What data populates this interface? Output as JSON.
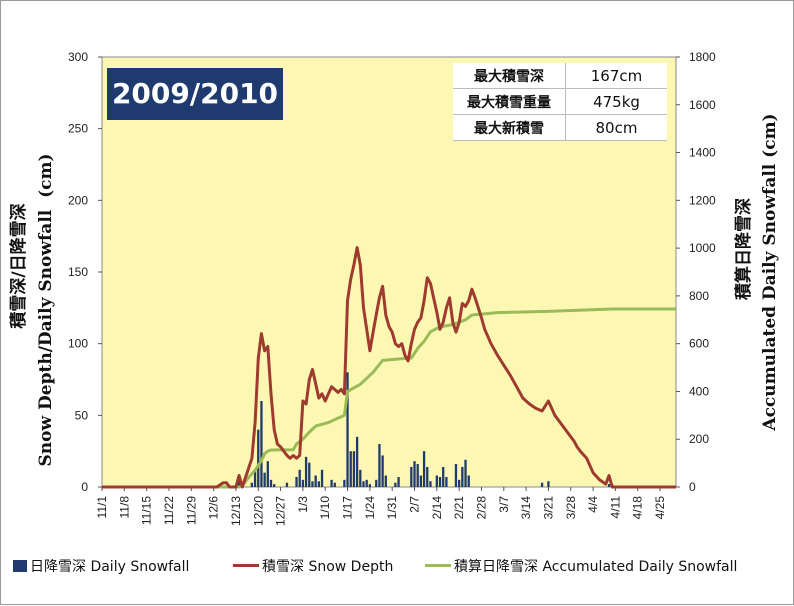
{
  "chart_data": {
    "type": "bar",
    "season_label": "2009/2010",
    "left_axis_title": "積雪深/日降雪深 Snow Depth/Daily Snowfall (cm)",
    "left_axis_title_jp": "積雪深/日降雪深",
    "left_axis_title_en": "Snow Depth/Daily Snowfall  (cm)",
    "right_axis_title_jp": "積算日降雪深",
    "right_axis_title_en": "Accumulated Daily Snowfall (cm)",
    "y_left_lim": [
      0,
      300
    ],
    "y_left_ticks": [
      "0",
      "50",
      "100",
      "150",
      "200",
      "250",
      "300"
    ],
    "y_right_lim": [
      0,
      1800
    ],
    "y_right_ticks": [
      "0",
      "200",
      "400",
      "600",
      "800",
      "1000",
      "1200",
      "1400",
      "1600",
      "1800"
    ],
    "x_days": 180,
    "x_tick_labels": [
      "11/1",
      "11/8",
      "11/15",
      "11/22",
      "11/29",
      "12/6",
      "12/13",
      "12/20",
      "12/27",
      "1/3",
      "1/10",
      "1/17",
      "1/24",
      "1/31",
      "2/7",
      "2/14",
      "2/21",
      "2/28",
      "3/7",
      "3/14",
      "3/21",
      "3/28",
      "4/4",
      "4/11",
      "4/18",
      "4/25"
    ],
    "stats": [
      {
        "label": "最大積雪深",
        "value": "167cm"
      },
      {
        "label": "最大積雪重量",
        "value": "475kg"
      },
      {
        "label": "最大新積雪",
        "value": "80cm"
      }
    ],
    "colors": {
      "plot_bg": "#fcf8b4",
      "bars": "#1f3a6e",
      "snow_depth": "#9e3b2e",
      "accumulated": "#9bbb59",
      "label_bg": "#1f3a6e"
    },
    "series": [
      {
        "name": "日降雪深 Daily Snowfall",
        "type": "bar",
        "axis": "left",
        "points": [
          [
            43,
            8
          ],
          [
            47,
            3
          ],
          [
            48,
            12
          ],
          [
            49,
            40
          ],
          [
            50,
            60
          ],
          [
            51,
            10
          ],
          [
            52,
            18
          ],
          [
            53,
            5
          ],
          [
            54,
            2
          ],
          [
            58,
            3
          ],
          [
            61,
            7
          ],
          [
            62,
            12
          ],
          [
            63,
            5
          ],
          [
            64,
            21
          ],
          [
            65,
            17
          ],
          [
            66,
            4
          ],
          [
            67,
            8
          ],
          [
            68,
            4
          ],
          [
            69,
            12
          ],
          [
            72,
            5
          ],
          [
            73,
            3
          ],
          [
            76,
            5
          ],
          [
            77,
            80
          ],
          [
            78,
            25
          ],
          [
            79,
            25
          ],
          [
            80,
            35
          ],
          [
            81,
            12
          ],
          [
            82,
            4
          ],
          [
            83,
            5
          ],
          [
            84,
            2
          ],
          [
            86,
            5
          ],
          [
            87,
            30
          ],
          [
            88,
            22
          ],
          [
            89,
            8
          ],
          [
            92,
            3
          ],
          [
            93,
            7
          ],
          [
            97,
            14
          ],
          [
            98,
            18
          ],
          [
            99,
            16
          ],
          [
            100,
            8
          ],
          [
            101,
            25
          ],
          [
            102,
            14
          ],
          [
            103,
            4
          ],
          [
            105,
            8
          ],
          [
            106,
            7
          ],
          [
            107,
            14
          ],
          [
            108,
            7
          ],
          [
            111,
            16
          ],
          [
            112,
            5
          ],
          [
            113,
            14
          ],
          [
            114,
            19
          ],
          [
            115,
            8
          ],
          [
            138,
            3
          ],
          [
            140,
            4
          ],
          [
            159,
            2
          ],
          [
            160,
            2
          ]
        ]
      },
      {
        "name": "積雪深 Snow Depth",
        "type": "line",
        "axis": "left",
        "points": [
          [
            0,
            0
          ],
          [
            36,
            0
          ],
          [
            38,
            3
          ],
          [
            39,
            3
          ],
          [
            40,
            0
          ],
          [
            42,
            0
          ],
          [
            43,
            8
          ],
          [
            44,
            0
          ],
          [
            47,
            20
          ],
          [
            48,
            45
          ],
          [
            49,
            90
          ],
          [
            50,
            107
          ],
          [
            51,
            95
          ],
          [
            52,
            98
          ],
          [
            53,
            65
          ],
          [
            54,
            40
          ],
          [
            55,
            30
          ],
          [
            56,
            28
          ],
          [
            57,
            25
          ],
          [
            58,
            22
          ],
          [
            59,
            20
          ],
          [
            60,
            22
          ],
          [
            61,
            20
          ],
          [
            62,
            22
          ],
          [
            63,
            60
          ],
          [
            64,
            58
          ],
          [
            65,
            75
          ],
          [
            66,
            82
          ],
          [
            67,
            72
          ],
          [
            68,
            62
          ],
          [
            69,
            65
          ],
          [
            70,
            60
          ],
          [
            71,
            65
          ],
          [
            72,
            70
          ],
          [
            73,
            68
          ],
          [
            74,
            66
          ],
          [
            75,
            68
          ],
          [
            76,
            65
          ],
          [
            77,
            130
          ],
          [
            78,
            145
          ],
          [
            79,
            155
          ],
          [
            80,
            167
          ],
          [
            81,
            155
          ],
          [
            82,
            125
          ],
          [
            83,
            110
          ],
          [
            84,
            95
          ],
          [
            85,
            108
          ],
          [
            86,
            120
          ],
          [
            87,
            132
          ],
          [
            88,
            140
          ],
          [
            89,
            120
          ],
          [
            90,
            112
          ],
          [
            91,
            108
          ],
          [
            92,
            100
          ],
          [
            93,
            98
          ],
          [
            94,
            100
          ],
          [
            95,
            92
          ],
          [
            96,
            88
          ],
          [
            97,
            100
          ],
          [
            98,
            110
          ],
          [
            99,
            115
          ],
          [
            100,
            118
          ],
          [
            101,
            130
          ],
          [
            102,
            146
          ],
          [
            103,
            142
          ],
          [
            104,
            132
          ],
          [
            105,
            122
          ],
          [
            106,
            110
          ],
          [
            107,
            115
          ],
          [
            108,
            125
          ],
          [
            109,
            132
          ],
          [
            110,
            115
          ],
          [
            111,
            108
          ],
          [
            112,
            115
          ],
          [
            113,
            128
          ],
          [
            114,
            126
          ],
          [
            115,
            130
          ],
          [
            116,
            138
          ],
          [
            117,
            132
          ],
          [
            118,
            125
          ],
          [
            119,
            118
          ],
          [
            120,
            110
          ],
          [
            122,
            100
          ],
          [
            124,
            92
          ],
          [
            126,
            85
          ],
          [
            128,
            78
          ],
          [
            130,
            70
          ],
          [
            132,
            62
          ],
          [
            134,
            58
          ],
          [
            136,
            55
          ],
          [
            138,
            53
          ],
          [
            140,
            60
          ],
          [
            142,
            50
          ],
          [
            144,
            44
          ],
          [
            146,
            38
          ],
          [
            148,
            32
          ],
          [
            149,
            28
          ],
          [
            150,
            25
          ],
          [
            152,
            20
          ],
          [
            154,
            10
          ],
          [
            156,
            5
          ],
          [
            158,
            2
          ],
          [
            159,
            8
          ],
          [
            160,
            0
          ],
          [
            163,
            0
          ],
          [
            180,
            0
          ]
        ]
      },
      {
        "name": "積算日降雪深 Accumulated Daily Snowfall",
        "type": "line",
        "axis": "right",
        "points": [
          [
            0,
            0
          ],
          [
            43,
            0
          ],
          [
            44,
            5
          ],
          [
            46,
            40
          ],
          [
            48,
            70
          ],
          [
            50,
            110
          ],
          [
            51,
            140
          ],
          [
            52,
            150
          ],
          [
            53,
            155
          ],
          [
            60,
            156
          ],
          [
            61,
            180
          ],
          [
            63,
            200
          ],
          [
            65,
            230
          ],
          [
            67,
            255
          ],
          [
            71,
            270
          ],
          [
            76,
            300
          ],
          [
            77,
            400
          ],
          [
            81,
            430
          ],
          [
            85,
            480
          ],
          [
            88,
            530
          ],
          [
            92,
            535
          ],
          [
            97,
            540
          ],
          [
            99,
            580
          ],
          [
            101,
            610
          ],
          [
            103,
            650
          ],
          [
            106,
            670
          ],
          [
            110,
            680
          ],
          [
            114,
            700
          ],
          [
            116,
            720
          ],
          [
            124,
            730
          ],
          [
            140,
            735
          ],
          [
            160,
            745
          ],
          [
            180,
            745
          ]
        ]
      }
    ]
  }
}
